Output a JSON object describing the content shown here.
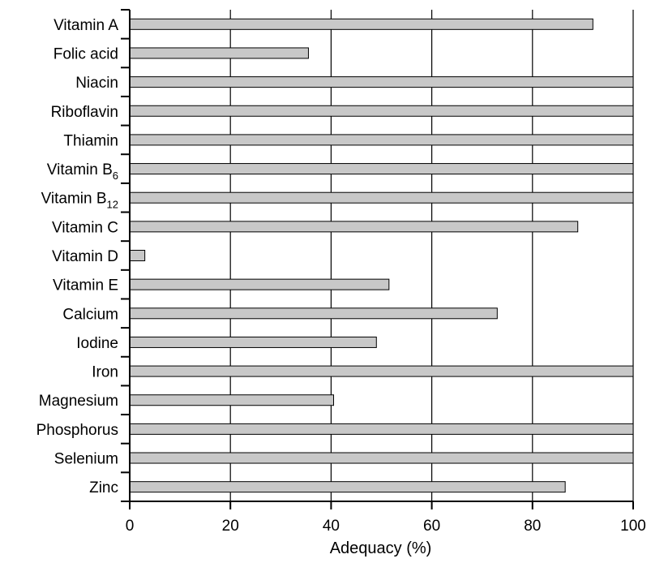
{
  "chart_data": {
    "type": "bar",
    "orientation": "horizontal",
    "categories": [
      "Vitamin A",
      "Folic acid",
      "Niacin",
      "Riboflavin",
      "Thiamin",
      "Vitamin B6",
      "Vitamin B12",
      "Vitamin C",
      "Vitamin D",
      "Vitamin E",
      "Calcium",
      "Iodine",
      "Iron",
      "Magnesium",
      "Phosphorus",
      "Selenium",
      "Zinc"
    ],
    "category_labels": [
      {
        "base": "Vitamin A",
        "sub": ""
      },
      {
        "base": "Folic acid",
        "sub": ""
      },
      {
        "base": "Niacin",
        "sub": ""
      },
      {
        "base": "Riboflavin",
        "sub": ""
      },
      {
        "base": "Thiamin",
        "sub": ""
      },
      {
        "base": "Vitamin B",
        "sub": "6"
      },
      {
        "base": "Vitamin B",
        "sub": "12"
      },
      {
        "base": "Vitamin C",
        "sub": ""
      },
      {
        "base": "Vitamin D",
        "sub": ""
      },
      {
        "base": "Vitamin E",
        "sub": ""
      },
      {
        "base": "Calcium",
        "sub": ""
      },
      {
        "base": "Iodine",
        "sub": ""
      },
      {
        "base": "Iron",
        "sub": ""
      },
      {
        "base": "Magnesium",
        "sub": ""
      },
      {
        "base": "Phosphorus",
        "sub": ""
      },
      {
        "base": "Selenium",
        "sub": ""
      },
      {
        "base": "Zinc",
        "sub": ""
      }
    ],
    "values": [
      92,
      35.5,
      100,
      100,
      100,
      100,
      100,
      89,
      3,
      51.5,
      73,
      49,
      100,
      40.5,
      100,
      100,
      86.5
    ],
    "title": "",
    "xlabel": "Adequacy (%)",
    "ylabel": "",
    "xlim": [
      0,
      100
    ],
    "xticks": [
      0,
      20,
      40,
      60,
      80,
      100
    ],
    "grid": "vertical",
    "bar_color": "#c8c8c8",
    "bar_edge_color": "#000000"
  }
}
